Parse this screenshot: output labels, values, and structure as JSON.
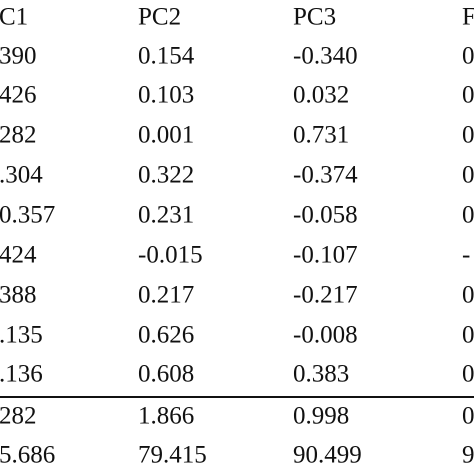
{
  "table": {
    "header": [
      "C1",
      "PC2",
      "PC3",
      "F"
    ],
    "rows": [
      [
        "390",
        "0.154",
        "-0.340",
        "0"
      ],
      [
        "426",
        "0.103",
        "0.032",
        "0"
      ],
      [
        "282",
        "0.001",
        "0.731",
        "0"
      ],
      [
        ".304",
        "0.322",
        "-0.374",
        "0"
      ],
      [
        "0.357",
        "0.231",
        "-0.058",
        "0"
      ],
      [
        "424",
        "-0.015",
        "-0.107",
        "-"
      ],
      [
        "388",
        "0.217",
        "-0.217",
        "0"
      ],
      [
        ".135",
        "0.626",
        "-0.008",
        "0"
      ],
      [
        ".136",
        "0.608",
        "0.383",
        "0"
      ],
      [
        "282",
        "1.866",
        "0.998",
        "0"
      ],
      [
        "5.686",
        "79.415",
        "90.499",
        "9"
      ]
    ]
  }
}
